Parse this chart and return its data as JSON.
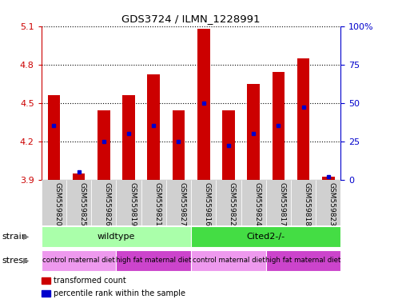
{
  "title": "GDS3724 / ILMN_1228991",
  "samples": [
    "GSM559820",
    "GSM559825",
    "GSM559826",
    "GSM559819",
    "GSM559821",
    "GSM559827",
    "GSM559816",
    "GSM559822",
    "GSM559824",
    "GSM559817",
    "GSM559818",
    "GSM559823"
  ],
  "bar_bottom": 3.9,
  "transformed_counts": [
    4.56,
    3.95,
    4.44,
    4.56,
    4.72,
    4.44,
    5.08,
    4.44,
    4.65,
    4.74,
    4.85,
    3.92
  ],
  "percentile_ranks": [
    35,
    5,
    25,
    30,
    35,
    25,
    50,
    22,
    30,
    35,
    47,
    2
  ],
  "ylim_left": [
    3.9,
    5.1
  ],
  "ylim_right": [
    0,
    100
  ],
  "left_yticks": [
    3.9,
    4.2,
    4.5,
    4.8,
    5.1
  ],
  "right_yticks": [
    0,
    25,
    50,
    75,
    100
  ],
  "bar_color": "#cc0000",
  "percentile_color": "#0000cc",
  "strain_groups": [
    {
      "label": "wildtype",
      "start": 0,
      "end": 6,
      "color": "#aaffaa"
    },
    {
      "label": "Cited2-/-",
      "start": 6,
      "end": 12,
      "color": "#44dd44"
    }
  ],
  "stress_groups": [
    {
      "label": "control maternal diet",
      "start": 0,
      "end": 3,
      "color": "#ee99ee"
    },
    {
      "label": "high fat maternal diet",
      "start": 3,
      "end": 6,
      "color": "#cc44cc"
    },
    {
      "label": "control maternal diet",
      "start": 6,
      "end": 9,
      "color": "#ee99ee"
    },
    {
      "label": "high fat maternal diet",
      "start": 9,
      "end": 12,
      "color": "#cc44cc"
    }
  ],
  "legend_items": [
    {
      "label": "transformed count",
      "color": "#cc0000"
    },
    {
      "label": "percentile rank within the sample",
      "color": "#0000cc"
    }
  ],
  "grid_color": "#000000",
  "left_axis_color": "#cc0000",
  "right_axis_color": "#0000cc",
  "xtick_bg_color": "#d0d0d0",
  "background_color": "#ffffff",
  "bar_width": 0.5
}
